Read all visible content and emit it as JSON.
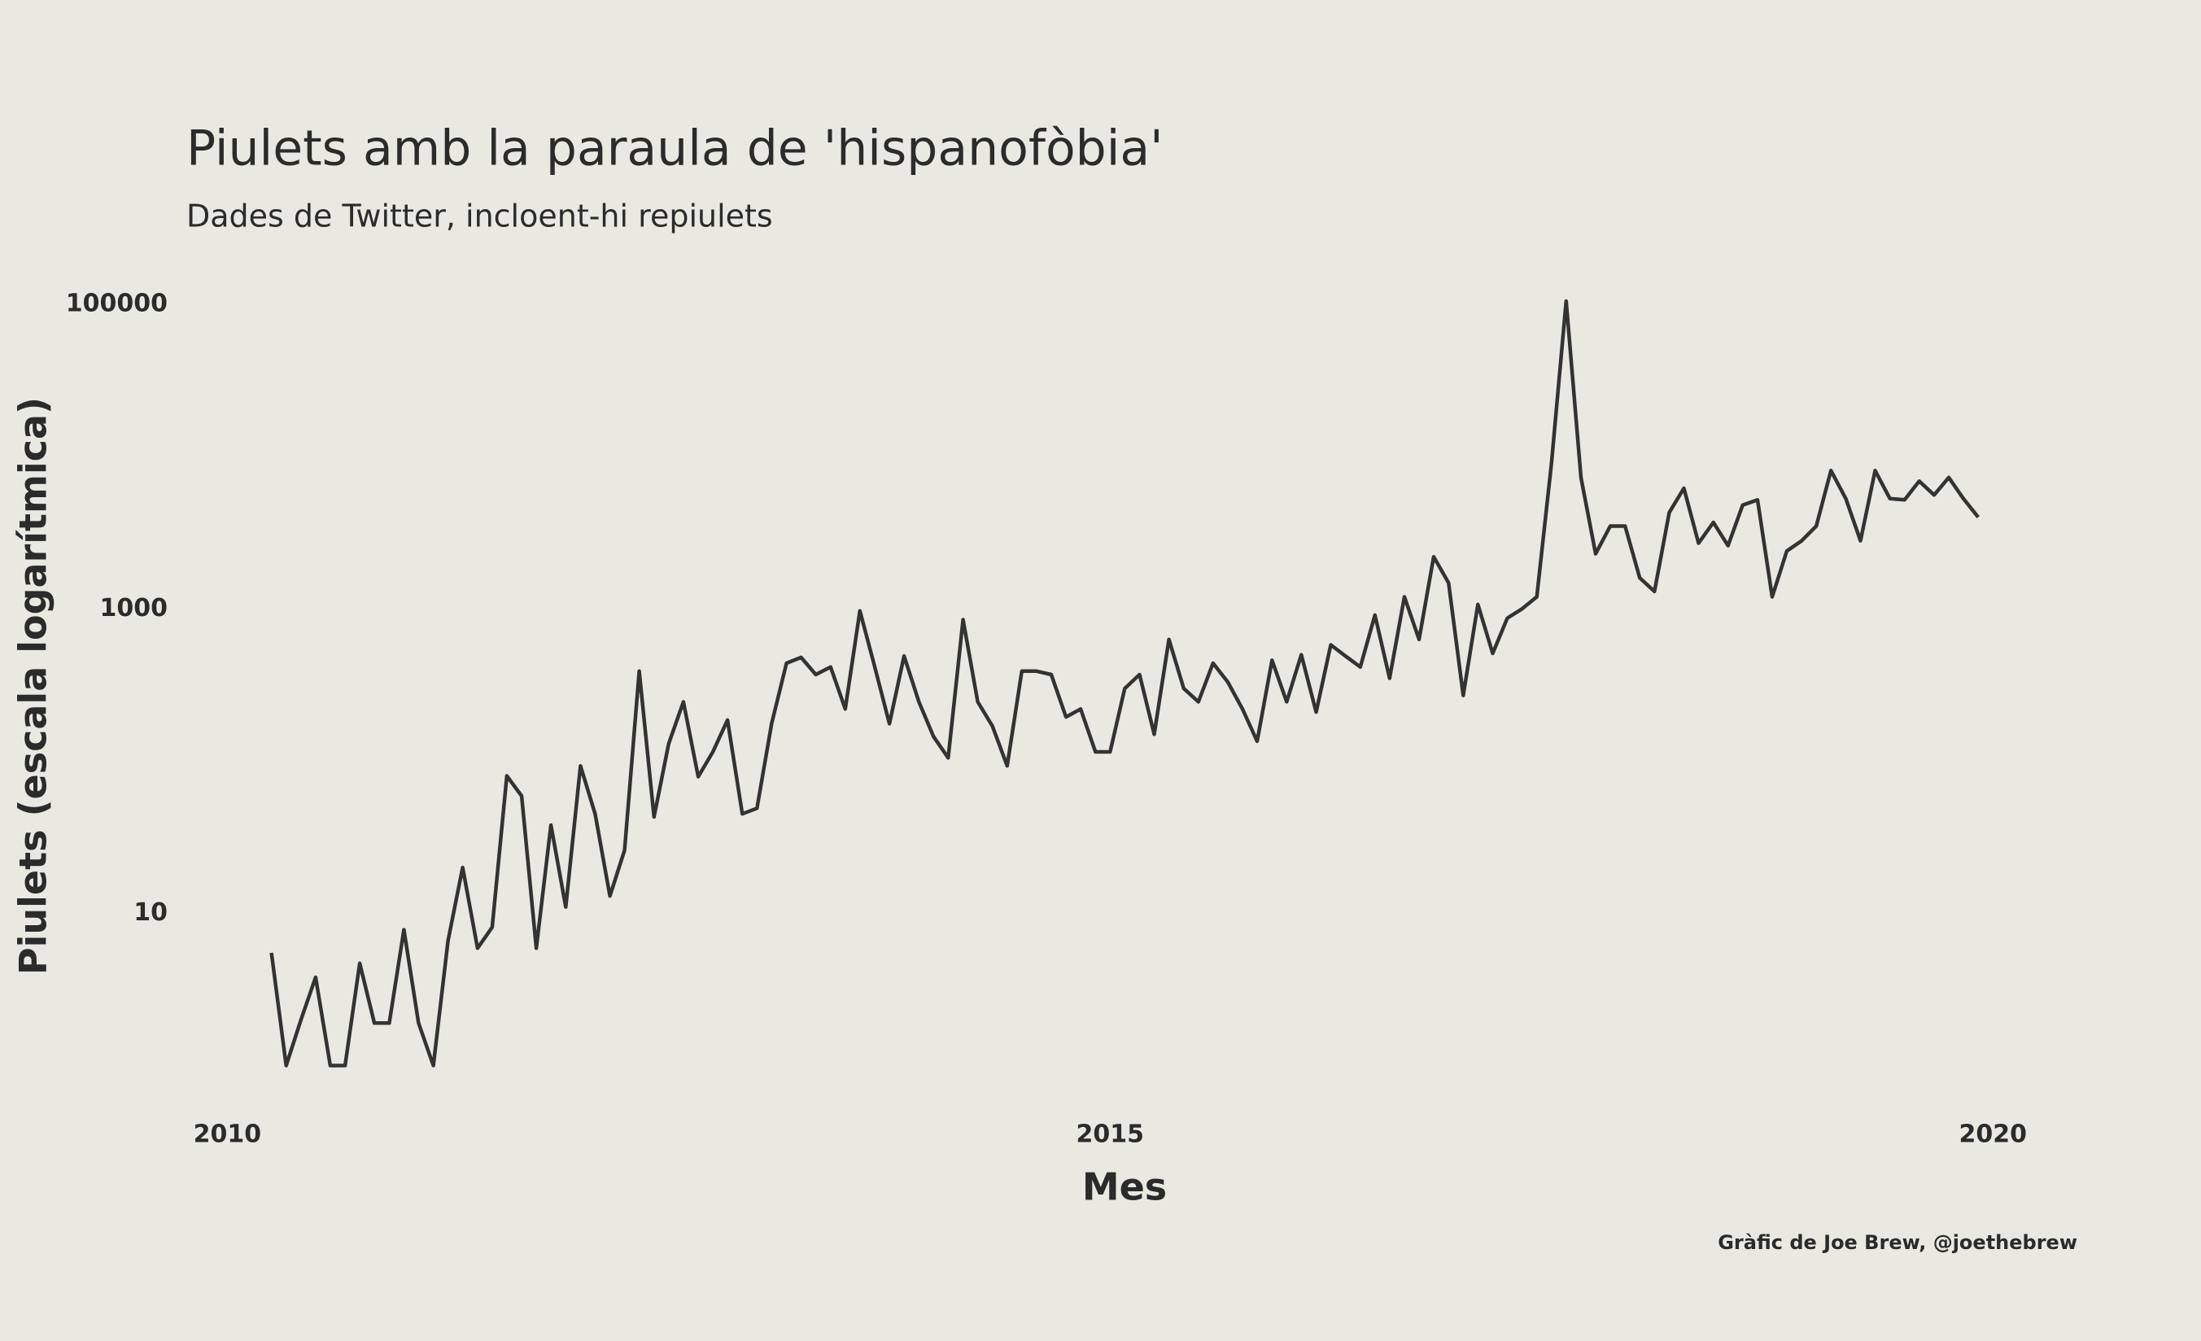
{
  "chart_data": {
    "type": "line",
    "title": "Piulets amb la paraula de 'hispanofòbia'",
    "subtitle": "Dades de Twitter, incloent-hi repiulets",
    "xlabel": "Mes",
    "ylabel": "Piulets (escala logarítmica)",
    "caption": "Gràfic de Joe Brew, @joethebrew",
    "log_y": true,
    "grid": false,
    "xlim": [
      2009.8,
      2020.4
    ],
    "xticks": [
      2010,
      2015,
      2020
    ],
    "ylim": [
      0.6,
      170000
    ],
    "yticks": [
      10,
      1000,
      100000
    ],
    "x": [
      2010.25,
      2010.333,
      2010.417,
      2010.5,
      2010.583,
      2010.667,
      2010.75,
      2010.833,
      2010.917,
      2011,
      2011.083,
      2011.167,
      2011.25,
      2011.333,
      2011.417,
      2011.5,
      2011.583,
      2011.667,
      2011.75,
      2011.833,
      2011.917,
      2012,
      2012.083,
      2012.167,
      2012.25,
      2012.333,
      2012.417,
      2012.5,
      2012.583,
      2012.667,
      2012.75,
      2012.833,
      2012.917,
      2013,
      2013.083,
      2013.167,
      2013.25,
      2013.333,
      2013.417,
      2013.5,
      2013.583,
      2013.667,
      2013.75,
      2013.833,
      2013.917,
      2014,
      2014.083,
      2014.167,
      2014.25,
      2014.333,
      2014.417,
      2014.5,
      2014.583,
      2014.667,
      2014.75,
      2014.833,
      2014.917,
      2015,
      2015.083,
      2015.167,
      2015.25,
      2015.333,
      2015.417,
      2015.5,
      2015.583,
      2015.667,
      2015.75,
      2015.833,
      2015.917,
      2016,
      2016.083,
      2016.167,
      2016.25,
      2016.333,
      2016.417,
      2016.5,
      2016.583,
      2016.667,
      2016.75,
      2016.833,
      2016.917,
      2017,
      2017.083,
      2017.167,
      2017.25,
      2017.333,
      2017.417,
      2017.5,
      2017.583,
      2017.667,
      2017.75,
      2017.833,
      2017.917,
      2018,
      2018.083,
      2018.167,
      2018.25,
      2018.333,
      2018.417,
      2018.5,
      2018.583,
      2018.667,
      2018.75,
      2018.833,
      2018.917,
      2019,
      2019.083,
      2019.167,
      2019.25,
      2019.333,
      2019.417,
      2019.5,
      2019.583,
      2019.667,
      2019.75,
      2019.833,
      2019.917
    ],
    "series": [
      {
        "color": "#333333",
        "values": [
          5.5,
          1,
          2,
          3.8,
          1,
          1,
          4.7,
          1.9,
          1.9,
          7.8,
          1.9,
          1,
          6.6,
          20,
          5.9,
          8.1,
          80,
          59,
          5.9,
          38,
          11,
          93,
          45,
          13,
          26,
          390,
          43,
          130,
          245,
          79,
          115,
          186,
          45,
          49,
          176,
          440,
          480,
          370,
          415,
          220,
          970,
          415,
          176,
          490,
          245,
          145,
          105,
          850,
          245,
          170,
          93,
          390,
          390,
          370,
          195,
          220,
          115,
          115,
          300,
          370,
          150,
          630,
          300,
          245,
          440,
          330,
          220,
          135,
          460,
          245,
          500,
          210,
          580,
          490,
          415,
          910,
          350,
          1200,
          630,
          2200,
          1480,
          270,
          1070,
          510,
          870,
          1000,
          1200,
          9100,
          105000,
          7300,
          2300,
          3500,
          3500,
          1600,
          1300,
          4300,
          6200,
          2700,
          3700,
          2600,
          4800,
          5200,
          1200,
          2400,
          2800,
          3500,
          8100,
          5300,
          2800,
          8100,
          5300,
          5200,
          6900,
          5600,
          7300,
          5300,
          4000
        ]
      }
    ]
  }
}
